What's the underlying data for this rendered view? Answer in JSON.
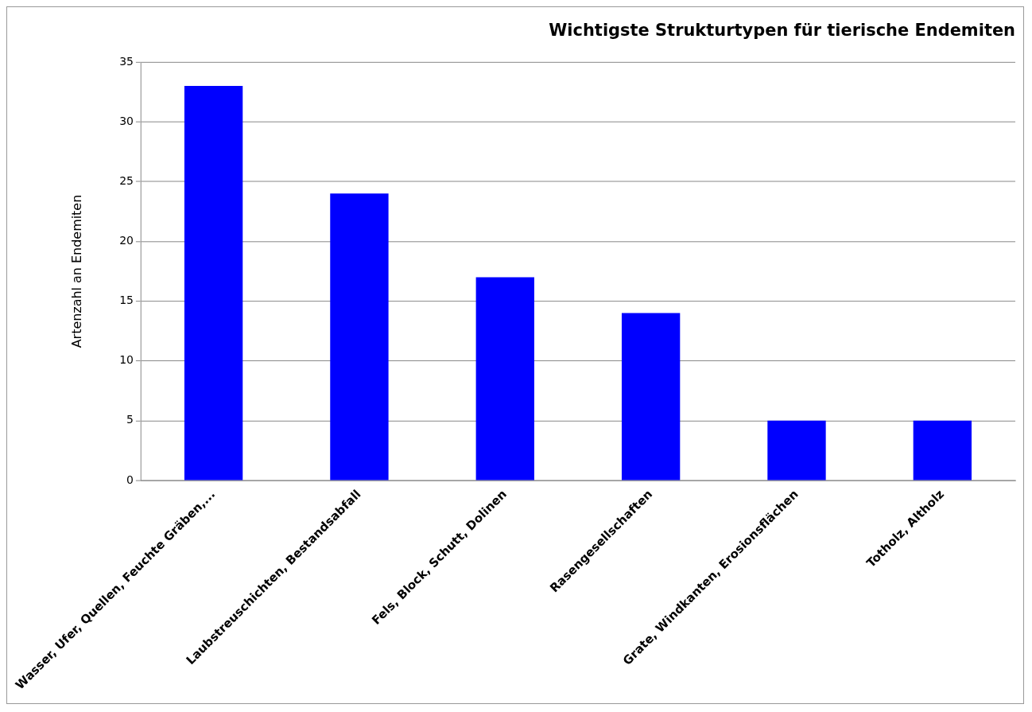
{
  "chart_data": {
    "type": "bar",
    "title": "Wichtigste Strukturtypen für tierische Endemiten",
    "ylabel": "Artenzahl an Endemiten",
    "categories": [
      "Wasser, Ufer, Quellen, Feuchte Gräben,...",
      "Laubstreuschichten, Bestandsabfall",
      "Fels, Block, Schutt, Dolinen",
      "Rasengesellschaften",
      "Grate, Windkanten, Erosionsflächen",
      "Totholz, Altholz"
    ],
    "values": [
      33,
      24,
      17,
      14,
      5,
      5
    ],
    "color": "#0000ff",
    "ylim": [
      0,
      35
    ],
    "yticks": [
      0,
      5,
      10,
      15,
      20,
      25,
      30,
      35
    ],
    "grid": "y",
    "legend": false
  }
}
